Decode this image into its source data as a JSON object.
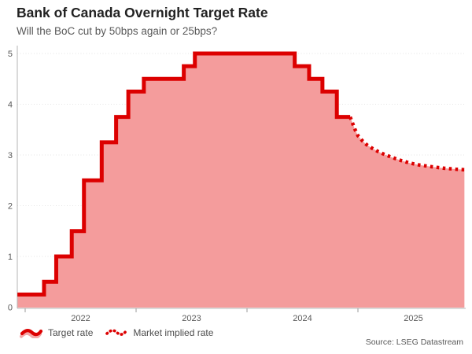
{
  "header": {
    "title": "Bank of Canada Overnight Target Rate",
    "subtitle": "Will the BoC cut by 50bps again or 25bps?"
  },
  "legend": {
    "items": [
      {
        "label": "Target rate",
        "icon": "solid-wave-icon"
      },
      {
        "label": "Market implied rate",
        "icon": "dotted-wave-icon"
      }
    ]
  },
  "source": "Source: LSEG Datastream",
  "colors": {
    "line_red": "#dc0000",
    "fill_pink": "#f49c9c",
    "axis_gray": "#b5b5b5",
    "text_gray": "#595959"
  },
  "chart_data": {
    "type": "area",
    "title": "Bank of Canada Overnight Target Rate",
    "subtitle": "Will the BoC cut by 50bps again or 25bps?",
    "xlabel": "",
    "ylabel": "",
    "ylim": [
      0,
      5.25
    ],
    "xlim": [
      2021.93,
      2025.97
    ],
    "y_ticks": [
      0,
      1,
      2,
      3,
      4,
      5
    ],
    "x_ticks": [
      2022,
      2023,
      2024,
      2025
    ],
    "grid": "horizontal-dotted",
    "legend_position": "bottom-left",
    "fill_color": "#f49c9c",
    "series": [
      {
        "name": "Target rate",
        "style": "solid-step",
        "color": "#dc0000",
        "points": [
          [
            2021.93,
            0.25
          ],
          [
            2022.17,
            0.5
          ],
          [
            2022.28,
            1.0
          ],
          [
            2022.42,
            1.5
          ],
          [
            2022.53,
            2.5
          ],
          [
            2022.69,
            3.25
          ],
          [
            2022.82,
            3.75
          ],
          [
            2022.93,
            4.25
          ],
          [
            2023.07,
            4.5
          ],
          [
            2023.43,
            4.75
          ],
          [
            2023.53,
            5.0
          ],
          [
            2024.43,
            4.75
          ],
          [
            2024.56,
            4.5
          ],
          [
            2024.68,
            4.25
          ],
          [
            2024.81,
            3.75
          ],
          [
            2024.93,
            3.75
          ]
        ]
      },
      {
        "name": "Market implied rate",
        "style": "dotted",
        "color": "#dc0000",
        "points": [
          [
            2024.93,
            3.75
          ],
          [
            2024.97,
            3.52
          ],
          [
            2025.0,
            3.38
          ],
          [
            2025.04,
            3.28
          ],
          [
            2025.08,
            3.2
          ],
          [
            2025.13,
            3.13
          ],
          [
            2025.18,
            3.07
          ],
          [
            2025.24,
            3.01
          ],
          [
            2025.31,
            2.95
          ],
          [
            2025.39,
            2.89
          ],
          [
            2025.47,
            2.84
          ],
          [
            2025.56,
            2.8
          ],
          [
            2025.66,
            2.77
          ],
          [
            2025.77,
            2.74
          ],
          [
            2025.88,
            2.72
          ],
          [
            2025.96,
            2.71
          ]
        ]
      }
    ]
  }
}
